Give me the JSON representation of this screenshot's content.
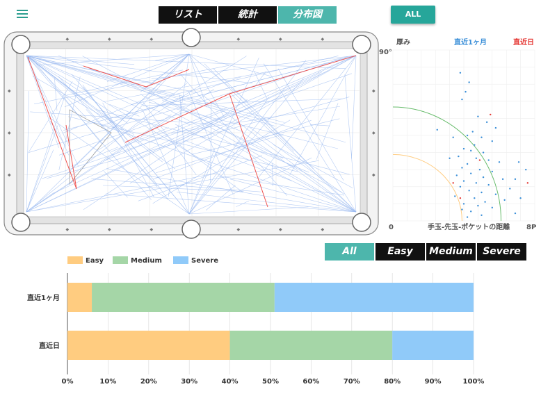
{
  "nav": {
    "tabs": [
      {
        "label": "リスト",
        "active": false
      },
      {
        "label": "統計",
        "active": false
      },
      {
        "label": "分布図",
        "active": true
      }
    ],
    "all_button": "ALL",
    "difficulty_tabs": [
      {
        "label": "All",
        "active": true
      },
      {
        "label": "Easy",
        "active": false
      },
      {
        "label": "Medium",
        "active": false
      },
      {
        "label": "Severe",
        "active": false
      }
    ]
  },
  "colors": {
    "accent": "#4db6ac",
    "easy": "#ffcc80",
    "medium": "#a5d6a7",
    "severe": "#90caf9",
    "recent_month": "#3b8fd8",
    "recent_day": "#e53935"
  },
  "chart_data": [
    {
      "type": "scatter",
      "title": "",
      "ylabel_top": "厚み",
      "y_top_label": "90°",
      "x_min_label": "0",
      "x_max_label": "8P",
      "xlabel": "手玉-先玉-ポケットの距離",
      "legend": [
        "直近1ヶ月",
        "直近日"
      ],
      "xlim": [
        0,
        8
      ],
      "ylim": [
        0,
        90
      ],
      "series": [
        {
          "name": "直近1ヶ月",
          "points": [
            [
              3.8,
              78
            ],
            [
              4.3,
              73
            ],
            [
              4.1,
              68
            ],
            [
              3.9,
              64
            ],
            [
              4.8,
              55
            ],
            [
              5.3,
              52
            ],
            [
              2.5,
              48
            ],
            [
              4.2,
              45
            ],
            [
              3.4,
              44
            ],
            [
              5.0,
              44
            ],
            [
              5.6,
              42
            ],
            [
              4.6,
              40
            ],
            [
              4.0,
              38
            ],
            [
              4.4,
              37
            ],
            [
              5.1,
              36
            ],
            [
              3.7,
              34
            ],
            [
              4.7,
              33
            ],
            [
              5.4,
              32
            ],
            [
              6.0,
              31
            ],
            [
              4.2,
              30
            ],
            [
              3.9,
              28
            ],
            [
              4.9,
              27
            ],
            [
              5.6,
              26
            ],
            [
              4.4,
              25
            ],
            [
              3.6,
              24
            ],
            [
              5.1,
              23
            ],
            [
              6.2,
              22
            ],
            [
              4.0,
              21
            ],
            [
              4.7,
              20
            ],
            [
              5.4,
              19
            ],
            [
              3.8,
              18
            ],
            [
              6.6,
              17
            ],
            [
              4.3,
              16
            ],
            [
              5.0,
              15
            ],
            [
              5.8,
              14
            ],
            [
              3.5,
              13
            ],
            [
              4.6,
              12
            ],
            [
              6.3,
              11
            ],
            [
              5.2,
              10
            ],
            [
              4.0,
              9
            ],
            [
              4.8,
              8
            ],
            [
              5.6,
              7
            ],
            [
              3.9,
              6
            ],
            [
              4.4,
              5
            ],
            [
              6.9,
              4
            ],
            [
              5.0,
              3
            ],
            [
              4.2,
              2
            ],
            [
              7.2,
              12
            ],
            [
              6.9,
              22
            ],
            [
              7.5,
              27
            ],
            [
              7.1,
              31
            ],
            [
              4.5,
              47
            ],
            [
              5.8,
              49
            ],
            [
              3.2,
              33
            ]
          ]
        },
        {
          "name": "直近日",
          "points": [
            [
              5.5,
              56
            ],
            [
              7.6,
              20
            ],
            [
              3.4,
              20
            ],
            [
              4.9,
              32
            ],
            [
              3.8,
              12
            ]
          ]
        }
      ],
      "curves": [
        "easy",
        "medium"
      ]
    },
    {
      "type": "bar",
      "orientation": "horizontal",
      "stacked": true,
      "categories": [
        "直近1ヶ月",
        "直近日"
      ],
      "series": [
        {
          "name": "Easy",
          "values": [
            6,
            40
          ]
        },
        {
          "name": "Medium",
          "values": [
            45,
            40
          ]
        },
        {
          "name": "Severe",
          "values": [
            49,
            20
          ]
        }
      ],
      "xlim": [
        0,
        100
      ],
      "x_ticks": [
        "0%",
        "10%",
        "20%",
        "30%",
        "40%",
        "50%",
        "60%",
        "70%",
        "80%",
        "90%",
        "100%"
      ],
      "legend_position": "top-left"
    }
  ],
  "table_shots": {
    "pockets": [
      [
        0.03,
        0.05
      ],
      [
        0.5,
        0.0
      ],
      [
        0.97,
        0.05
      ],
      [
        0.03,
        0.95
      ],
      [
        0.5,
        1.0
      ],
      [
        0.97,
        0.95
      ]
    ]
  }
}
